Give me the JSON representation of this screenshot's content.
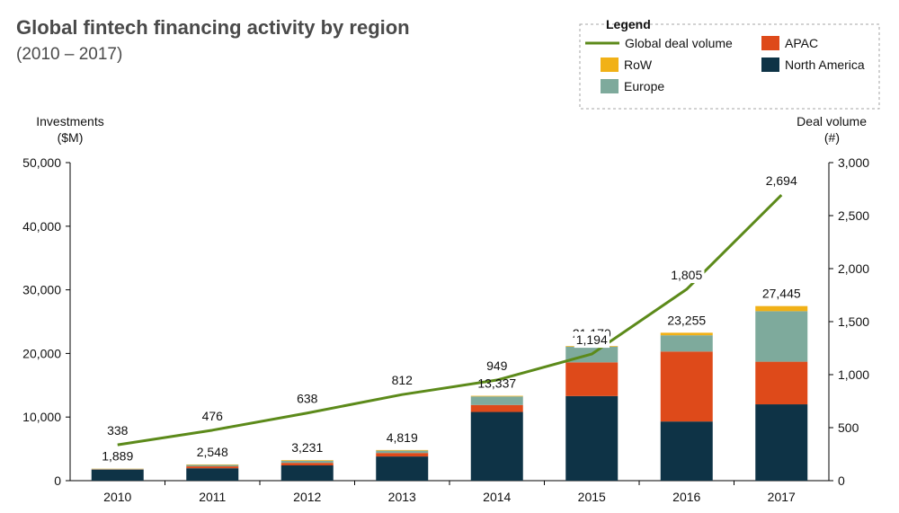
{
  "chart_data": {
    "type": "bar",
    "title": "Global fintech financing activity by region",
    "subtitle": "(2010 – 2017)",
    "categories": [
      "2010",
      "2011",
      "2012",
      "2013",
      "2014",
      "2015",
      "2016",
      "2017"
    ],
    "y_left": {
      "label_lines": [
        "Investments",
        "($M)"
      ],
      "ylim": [
        0,
        50000
      ],
      "ticks": [
        0,
        10000,
        20000,
        30000,
        40000,
        50000
      ],
      "tick_labels": [
        "0",
        "10,000",
        "20,000",
        "30,000",
        "40,000",
        "50,000"
      ]
    },
    "y_right": {
      "label_lines": [
        "Deal volume",
        "(#)"
      ],
      "ylim": [
        0,
        3000
      ],
      "ticks": [
        0,
        500,
        1000,
        1500,
        2000,
        2500,
        3000
      ],
      "tick_labels": [
        "0",
        "500",
        "1,000",
        "1,500",
        "2,000",
        "2,500",
        "3,000"
      ]
    },
    "stacked": true,
    "series": [
      {
        "name": "North America",
        "color": "#0e3346",
        "values": [
          1700,
          1950,
          2400,
          3800,
          10800,
          13300,
          9300,
          12000
        ]
      },
      {
        "name": "APAC",
        "color": "#de4a1a",
        "values": [
          50,
          300,
          400,
          550,
          1100,
          5300,
          11000,
          6700
        ]
      },
      {
        "name": "Europe",
        "color": "#7eaa9c",
        "values": [
          109,
          218,
          331,
          369,
          1337,
          2470,
          2555,
          7945
        ]
      },
      {
        "name": "RoW",
        "color": "#f1b117",
        "values": [
          30,
          80,
          100,
          100,
          100,
          100,
          400,
          800
        ]
      }
    ],
    "totals": [
      1889,
      2548,
      3231,
      4819,
      13337,
      21170,
      23255,
      27445
    ],
    "total_labels": [
      "1,889",
      "2,548",
      "3,231",
      "4,819",
      "13,337",
      "21,170",
      "23,255",
      "27,445"
    ],
    "line": {
      "name": "Global deal volume",
      "color": "#5c8a1a",
      "axis": "right",
      "values": [
        338,
        476,
        638,
        812,
        949,
        1194,
        1805,
        2694
      ],
      "labels": [
        "338",
        "476",
        "638",
        "812",
        "949",
        "1,194",
        "1,805",
        "2,694"
      ]
    },
    "legend": {
      "title": "Legend",
      "placement": "top-right",
      "items": [
        {
          "name": "Global deal volume",
          "kind": "line",
          "color": "#5c8a1a"
        },
        {
          "name": "APAC",
          "kind": "box",
          "color": "#de4a1a"
        },
        {
          "name": "RoW",
          "kind": "box",
          "color": "#f1b117"
        },
        {
          "name": "North America",
          "kind": "box",
          "color": "#0e3346"
        },
        {
          "name": "Europe",
          "kind": "box",
          "color": "#7eaa9c"
        }
      ]
    },
    "grid": false
  }
}
